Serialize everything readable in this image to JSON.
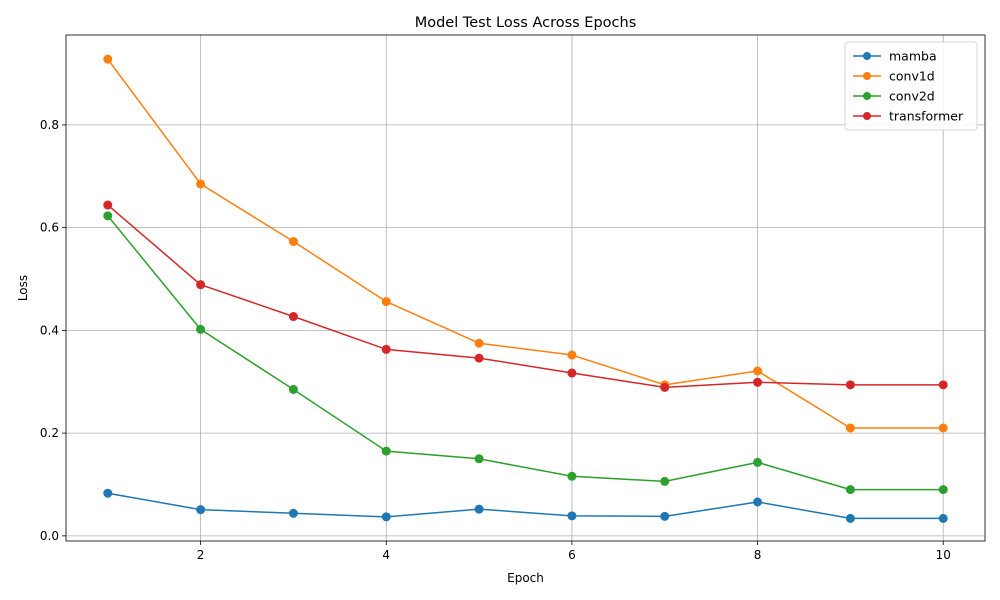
{
  "chart_data": {
    "type": "line",
    "title": "Model Test Loss Across Epochs",
    "xlabel": "Epoch",
    "ylabel": "Loss",
    "x": [
      1,
      2,
      3,
      4,
      5,
      6,
      7,
      8,
      9,
      10
    ],
    "xlim": [
      0.55,
      10.45
    ],
    "ylim": [
      -0.01,
      0.975
    ],
    "xticks": [
      2,
      4,
      6,
      8,
      10
    ],
    "xtick_labels": [
      "2",
      "4",
      "6",
      "8",
      "10"
    ],
    "yticks": [
      0.0,
      0.2,
      0.4,
      0.6,
      0.8
    ],
    "ytick_labels": [
      "0.0",
      "0.2",
      "0.4",
      "0.6",
      "0.8"
    ],
    "grid": true,
    "legend_position": "top-right",
    "series": [
      {
        "name": "mamba",
        "color": "#1f77b4",
        "values": [
          0.083,
          0.051,
          0.044,
          0.037,
          0.052,
          0.039,
          0.038,
          0.066,
          0.034,
          0.034
        ]
      },
      {
        "name": "conv1d",
        "color": "#ff7f0e",
        "values": [
          0.928,
          0.685,
          0.573,
          0.456,
          0.375,
          0.352,
          0.294,
          0.321,
          0.21,
          0.21
        ]
      },
      {
        "name": "conv2d",
        "color": "#2ca02c",
        "values": [
          0.623,
          0.402,
          0.285,
          0.165,
          0.15,
          0.116,
          0.106,
          0.143,
          0.09,
          0.09
        ]
      },
      {
        "name": "transformer",
        "color": "#d62728",
        "values": [
          0.644,
          0.489,
          0.427,
          0.363,
          0.346,
          0.317,
          0.289,
          0.299,
          0.294,
          0.294
        ]
      }
    ]
  }
}
